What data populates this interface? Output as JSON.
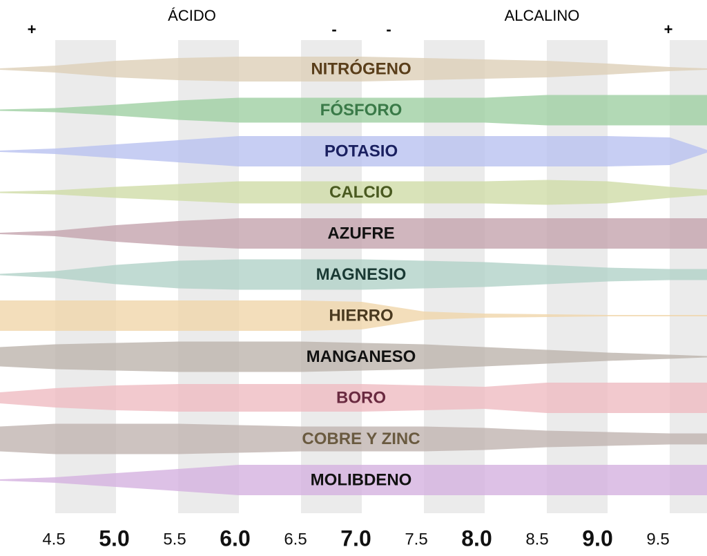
{
  "header": {
    "acid_label": "ÁCIDO",
    "alkaline_label": "ALCALINO",
    "strong_left": "+",
    "weak_left": "-",
    "weak_right": "-",
    "strong_right": "+"
  },
  "nutrients": [
    {
      "label": "NITRÓGENO",
      "color": "#ddcfb8",
      "text_color": "#5a3e1a"
    },
    {
      "label": "FÓSFORO",
      "color": "#9fd0a2",
      "text_color": "#3a7a48"
    },
    {
      "label": "POTASIO",
      "color": "#b9c2f0",
      "text_color": "#1a2060"
    },
    {
      "label": "CALCIO",
      "color": "#cfdca8",
      "text_color": "#4a5a20"
    },
    {
      "label": "AZUFRE",
      "color": "#c4a4ae",
      "text_color": "#111111"
    },
    {
      "label": "MAGNESIO",
      "color": "#b2d2c8",
      "text_color": "#1a3a34"
    },
    {
      "label": "HIERRO",
      "color": "#f0d6aa",
      "text_color": "#4a3a20"
    },
    {
      "label": "MANGANESO",
      "color": "#bdb4ac",
      "text_color": "#111111"
    },
    {
      "label": "BORO",
      "color": "#efbcc2",
      "text_color": "#6a2a40"
    },
    {
      "label": "COBRE Y ZINC",
      "color": "#c0b4b0",
      "text_color": "#6a5a40"
    },
    {
      "label": "MOLIBDENO",
      "color": "#d4b2e0",
      "text_color": "#111111"
    }
  ],
  "ph_scale": [
    "4.5",
    "5.0",
    "5.5",
    "6.0",
    "6.5",
    "7.0",
    "7.5",
    "8.0",
    "8.5",
    "9.0",
    "9.5"
  ]
}
